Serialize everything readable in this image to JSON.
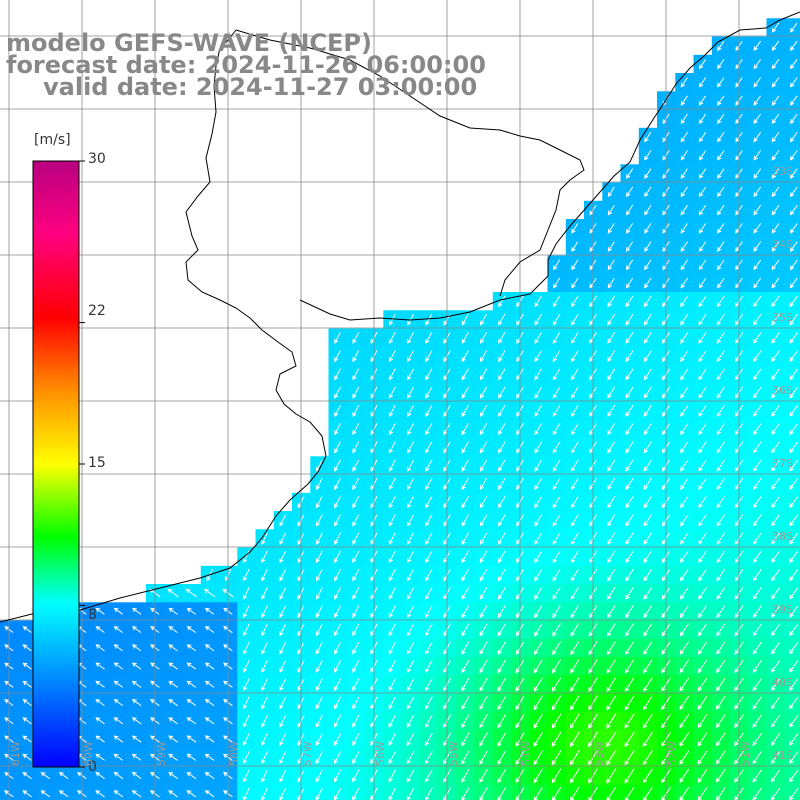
{
  "title": {
    "line1": "modelo GEFS-WAVE (NCEP)",
    "line2": "forecast date: 2024-11-26 06:00:00",
    "line3": "valid date: 2024-11-27 03:00:00"
  },
  "colorbar": {
    "unit": "[m/s]",
    "ticks": [
      {
        "value": 30,
        "label": "30"
      },
      {
        "value": 22,
        "label": "22"
      },
      {
        "value": 15,
        "label": "15"
      },
      {
        "value": 8,
        "label": "8"
      },
      {
        "value": 0,
        "label": "0"
      }
    ],
    "colors": [
      "#0000ff",
      "#00aaff",
      "#00ffff",
      "#00ff00",
      "#ffff00",
      "#ff7f00",
      "#ff0000",
      "#ff0080",
      "#b80080"
    ]
  },
  "map": {
    "lat_labels": [
      "33S",
      "34S",
      "35S",
      "36S",
      "37S",
      "38S",
      "39S",
      "40S",
      "41S"
    ],
    "lon_labels": [
      "61W",
      "60W",
      "59W",
      "58W",
      "57W",
      "56W",
      "55W",
      "54W",
      "53W",
      "52W",
      "51W"
    ],
    "colors": {
      "land": "#ffffff",
      "coast": "#000000",
      "grid": "#888888",
      "arrow": "#ffffff",
      "label": "#9a9a9a"
    }
  }
}
